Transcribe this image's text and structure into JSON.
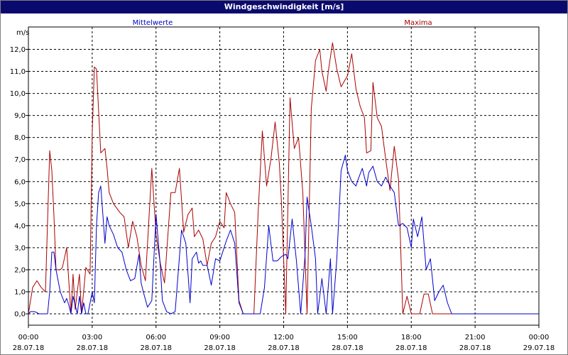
{
  "window": {
    "title": "Windgeschwindigkeit [m/s]"
  },
  "colors": {
    "mean": "#0000cc",
    "max": "#aa0000",
    "grid": "#000000",
    "titlebar": "#0a0a6e"
  },
  "chart_data": {
    "type": "line",
    "title": "Windgeschwindigkeit [m/s]",
    "ylabel": "m/s",
    "xlabel": "",
    "ylim": [
      0,
      12.5
    ],
    "xlim": [
      0,
      24
    ],
    "grid": true,
    "yticks": [
      "0,0",
      "1,0",
      "2,0",
      "3,0",
      "4,0",
      "5,0",
      "6,0",
      "7,0",
      "8,0",
      "9,0",
      "10,0",
      "11,0",
      "12,0"
    ],
    "xticks": [
      {
        "time": "00:00",
        "date": "28.07.18"
      },
      {
        "time": "03:00",
        "date": "28.07.18"
      },
      {
        "time": "06:00",
        "date": "28.07.18"
      },
      {
        "time": "09:00",
        "date": "28.07.18"
      },
      {
        "time": "12:00",
        "date": "28.07.18"
      },
      {
        "time": "15:00",
        "date": "28.07.18"
      },
      {
        "time": "18:00",
        "date": "28.07.18"
      },
      {
        "time": "21:00",
        "date": "28.07.18"
      },
      {
        "time": "00:00",
        "date": "29.07.18"
      }
    ],
    "series": [
      {
        "name": "Mittelwerte",
        "color": "#0000cc",
        "x": [
          0,
          0.1,
          0.3,
          0.5,
          0.7,
          0.9,
          1.0,
          1.1,
          1.2,
          1.3,
          1.5,
          1.7,
          1.8,
          1.9,
          2.0,
          2.1,
          2.3,
          2.4,
          2.5,
          2.6,
          2.7,
          2.8,
          3.0,
          3.1,
          3.2,
          3.3,
          3.4,
          3.5,
          3.6,
          3.7,
          3.8,
          4.0,
          4.2,
          4.4,
          4.6,
          4.8,
          5.0,
          5.2,
          5.3,
          5.4,
          5.6,
          5.8,
          6.0,
          6.2,
          6.3,
          6.5,
          6.7,
          6.9,
          7.2,
          7.4,
          7.6,
          7.7,
          7.9,
          8.0,
          8.1,
          8.2,
          8.4,
          8.6,
          8.8,
          9.0,
          9.1,
          9.3,
          9.5,
          9.7,
          9.9,
          10.1,
          10.3,
          10.5,
          10.7,
          10.9,
          11.1,
          11.3,
          11.5,
          11.7,
          11.9,
          12.1,
          12.2,
          12.4,
          12.6,
          12.8,
          13.0,
          13.1,
          13.3,
          13.5,
          13.6,
          13.8,
          14.0,
          14.2,
          14.3,
          14.5,
          14.7,
          14.9,
          15.0,
          15.2,
          15.4,
          15.5,
          15.7,
          15.8,
          15.9,
          16.0,
          16.2,
          16.4,
          16.6,
          16.8,
          17.0,
          17.2,
          17.4,
          17.6,
          17.8,
          18.0,
          18.1,
          18.3,
          18.5,
          18.7,
          18.9,
          19.1,
          19.3,
          19.5,
          19.7,
          19.9,
          20.1,
          20.3,
          20.5,
          20.7,
          20.9,
          21.0,
          22,
          23,
          24
        ],
        "values": [
          0.0,
          0.1,
          0.1,
          0.0,
          0.0,
          0.0,
          1.0,
          2.8,
          2.8,
          2.0,
          1.0,
          0.5,
          0.7,
          0.4,
          0.0,
          0.8,
          0.0,
          0.8,
          0.0,
          0.5,
          0.0,
          0.0,
          1.0,
          0.5,
          4.0,
          5.5,
          5.8,
          4.5,
          3.2,
          4.4,
          4.0,
          3.6,
          3.0,
          2.8,
          2.0,
          1.5,
          1.6,
          2.7,
          1.4,
          1.0,
          0.3,
          0.6,
          4.5,
          2.2,
          0.6,
          0.1,
          0.0,
          0.1,
          3.8,
          3.2,
          0.5,
          2.5,
          2.8,
          2.3,
          2.4,
          2.2,
          2.2,
          1.3,
          2.5,
          2.4,
          2.7,
          3.3,
          3.8,
          3.2,
          0.5,
          0.0,
          0.0,
          0.0,
          0.0,
          0.0,
          1.2,
          4.0,
          2.4,
          2.4,
          2.6,
          2.7,
          2.5,
          4.3,
          2.4,
          0.0,
          2.6,
          5.3,
          4.0,
          2.5,
          0.0,
          1.6,
          0.0,
          2.5,
          0.0,
          2.5,
          6.5,
          7.2,
          6.5,
          6.0,
          5.8,
          6.1,
          6.6,
          6.2,
          5.8,
          6.4,
          6.7,
          6.0,
          5.8,
          6.2,
          5.8,
          5.5,
          4.0,
          4.1,
          3.9,
          3.0,
          4.3,
          3.5,
          4.4,
          2.0,
          2.5,
          0.6,
          1.0,
          1.3,
          0.5,
          0.0,
          0.0,
          0.0,
          0.0,
          0.0,
          0.0,
          0.0,
          0.0,
          0.0,
          0.0
        ]
      },
      {
        "name": "Maxima",
        "color": "#aa0000",
        "x": [
          0,
          0.2,
          0.4,
          0.6,
          0.8,
          1.0,
          1.1,
          1.2,
          1.3,
          1.5,
          1.6,
          1.8,
          2.0,
          2.1,
          2.2,
          2.4,
          2.5,
          2.7,
          2.9,
          3.0,
          3.1,
          3.2,
          3.4,
          3.6,
          3.7,
          3.8,
          4.0,
          4.3,
          4.5,
          4.7,
          4.9,
          5.1,
          5.3,
          5.5,
          5.8,
          6.0,
          6.2,
          6.4,
          6.7,
          6.9,
          7.1,
          7.3,
          7.5,
          7.7,
          7.8,
          8.0,
          8.2,
          8.4,
          8.6,
          8.8,
          9.0,
          9.2,
          9.3,
          9.5,
          9.7,
          9.9,
          10.1,
          10.3,
          10.5,
          10.6,
          10.8,
          11.0,
          11.2,
          11.4,
          11.6,
          11.8,
          11.9,
          12.1,
          12.3,
          12.5,
          12.7,
          12.9,
          13.1,
          13.3,
          13.5,
          13.7,
          13.8,
          14.0,
          14.1,
          14.3,
          14.5,
          14.7,
          15.0,
          15.2,
          15.4,
          15.6,
          15.8,
          15.9,
          16.1,
          16.2,
          16.4,
          16.6,
          16.8,
          17.0,
          17.2,
          17.4,
          17.6,
          17.8,
          18.0,
          18.1,
          18.2,
          18.4,
          18.6,
          18.8,
          19.0,
          19.2,
          19.4,
          19.5,
          19.6,
          19.8,
          20.0,
          20.2,
          20.5,
          20.7,
          20.9,
          21.0,
          22,
          23,
          24
        ],
        "values": [
          0.0,
          1.2,
          1.5,
          1.2,
          1.0,
          7.4,
          6.5,
          4.5,
          2.0,
          2.0,
          2.1,
          3.0,
          0.0,
          1.8,
          0.2,
          1.8,
          0.0,
          2.1,
          1.8,
          8.2,
          11.2,
          11.1,
          7.3,
          7.5,
          6.6,
          5.5,
          5.0,
          4.6,
          4.4,
          3.0,
          4.2,
          3.5,
          2.2,
          1.5,
          6.6,
          3.6,
          2.3,
          1.4,
          5.5,
          5.5,
          6.6,
          3.7,
          4.5,
          4.8,
          3.5,
          3.8,
          3.4,
          2.2,
          3.2,
          3.5,
          4.2,
          3.9,
          5.5,
          5.0,
          4.6,
          0.6,
          0.0,
          0.0,
          0.0,
          0.0,
          4.6,
          8.3,
          5.8,
          7.0,
          8.7,
          6.8,
          5.0,
          0.0,
          9.8,
          7.5,
          8.0,
          5.5,
          0.0,
          9.3,
          11.5,
          12.0,
          11.0,
          10.1,
          11.0,
          12.3,
          11.1,
          10.3,
          10.8,
          11.8,
          10.2,
          9.4,
          8.9,
          7.3,
          7.4,
          10.5,
          8.9,
          8.5,
          7.0,
          5.6,
          7.6,
          6.1,
          0.0,
          0.8,
          0.0,
          0.0,
          0.0,
          0.0,
          0.9,
          0.9,
          0.0,
          0.0,
          0.0,
          0.0,
          0.0,
          0.0,
          0.0,
          0.0,
          0.0,
          0.0,
          0.0,
          0.0,
          0.0,
          0.0,
          0.0
        ]
      }
    ]
  }
}
